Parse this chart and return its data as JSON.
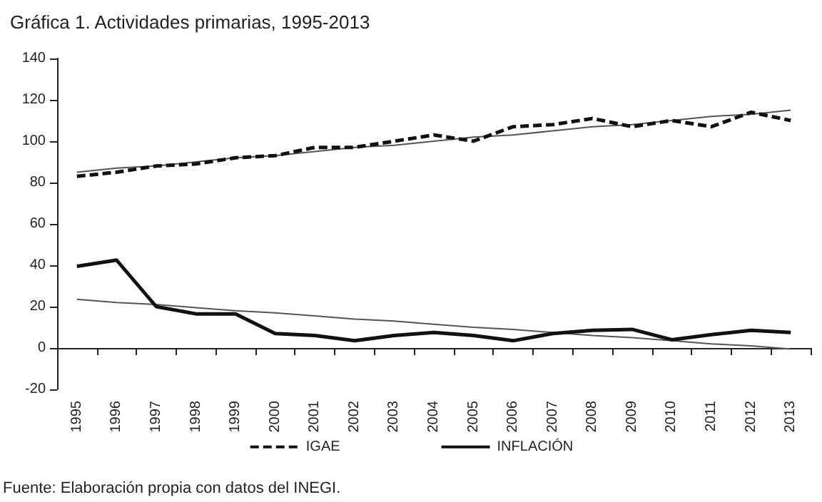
{
  "chart_data": {
    "type": "line",
    "title": "Gráfica 1. Actividades primarias, 1995-2013",
    "categories": [
      "1995",
      "1996",
      "1997",
      "1998",
      "1999",
      "2000",
      "2001",
      "2002",
      "2003",
      "2004",
      "2005",
      "2006",
      "2007",
      "2008",
      "2009",
      "2010",
      "2011",
      "2012",
      "2013"
    ],
    "series": [
      {
        "name": "IGAE",
        "color": "#111111",
        "line_style": "dashed",
        "values": [
          83,
          85,
          88,
          89,
          92,
          93,
          97,
          97,
          100,
          103,
          100,
          107,
          108,
          111,
          107,
          110,
          107,
          114,
          110
        ]
      },
      {
        "name": "INFLACIÓN",
        "color": "#111111",
        "line_style": "solid",
        "values": [
          39.5,
          42.5,
          20,
          16.5,
          16.5,
          7,
          6,
          3.5,
          6,
          7.5,
          6,
          3.5,
          7,
          8.5,
          9,
          4,
          6.5,
          8.5,
          7.5
        ]
      },
      {
        "type": "line",
        "color": "#555555",
        "line_style": "solid",
        "values": [
          85,
          87,
          88,
          90,
          92,
          93,
          95,
          97,
          98,
          100,
          102,
          103,
          105,
          107,
          108,
          110,
          112,
          113,
          115
        ]
      },
      {
        "type": "line",
        "color": "#555555",
        "line_style": "solid",
        "values": [
          23.5,
          22,
          21,
          19.5,
          18,
          17,
          15.5,
          14,
          13,
          11.5,
          10,
          9,
          7.5,
          6,
          5,
          3.5,
          2,
          1,
          -0.5
        ]
      }
    ],
    "ylim": [
      -20,
      140
    ],
    "yticks": [
      -20,
      0,
      20,
      40,
      60,
      80,
      100,
      120,
      140
    ],
    "legend": "bottom",
    "marker": "none",
    "annotations": [
      "Fuente: Elaboración propia con datos del INEGI."
    ]
  }
}
